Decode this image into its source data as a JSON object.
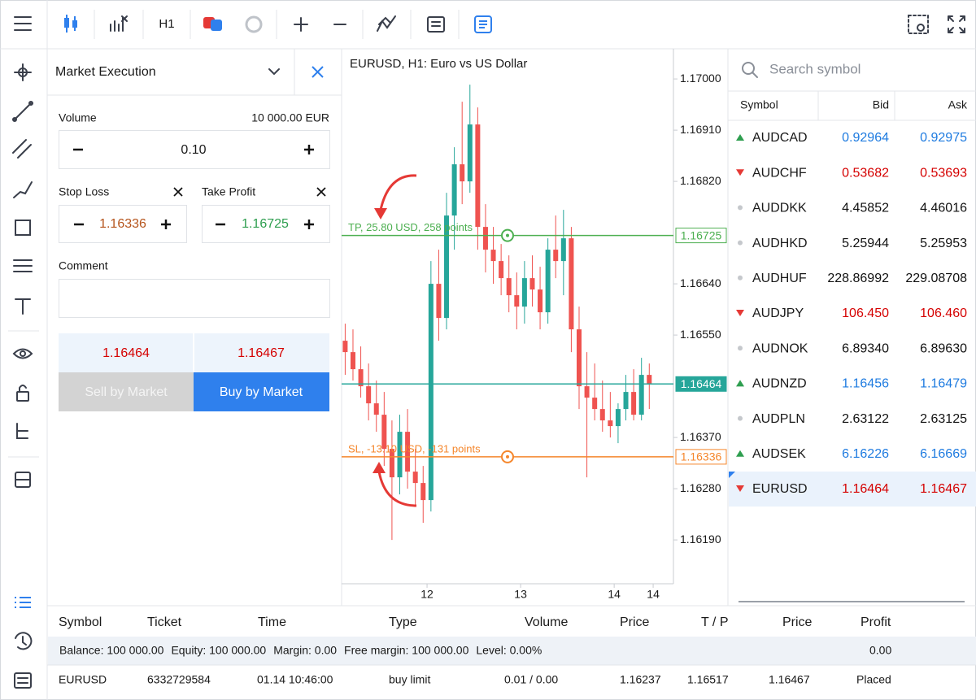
{
  "toolbar": {
    "timeframe": "H1"
  },
  "order_panel": {
    "title": "Market Execution",
    "volume_label": "Volume",
    "volume_value": "10 000.00 EUR",
    "volume": "0.10",
    "stop_loss_label": "Stop Loss",
    "stop_loss": "1.16336",
    "take_profit_label": "Take Profit",
    "take_profit": "1.16725",
    "comment_label": "Comment",
    "bid": "1.16464",
    "ask": "1.16467",
    "sell_button": "Sell by Market",
    "buy_button": "Buy by Market"
  },
  "chart": {
    "title": "EURUSD, H1: Euro vs US Dollar",
    "ylim": [
      1.16113,
      1.17053
    ],
    "yticks": [
      {
        "value": 1.17,
        "label": "1.17000"
      },
      {
        "value": 1.1691,
        "label": "1.16910"
      },
      {
        "value": 1.1682,
        "label": "1.16820"
      },
      {
        "value": 1.1664,
        "label": "1.16640"
      },
      {
        "value": 1.1655,
        "label": "1.16550"
      },
      {
        "value": 1.1637,
        "label": "1.16370"
      },
      {
        "value": 1.1628,
        "label": "1.16280"
      },
      {
        "value": 1.1619,
        "label": "1.16190"
      }
    ],
    "xlim": [
      2.5,
      87.2
    ],
    "xticks": [
      {
        "value": 24,
        "label": "12"
      },
      {
        "value": 48,
        "label": "13"
      },
      {
        "value": 72,
        "label": "14"
      },
      {
        "value": 82,
        "label": "14"
      }
    ],
    "up_color": "#26a69a",
    "down_color": "#ef5350",
    "candles": [
      [
        3,
        1.1654,
        1.1657,
        1.1648,
        1.1652
      ],
      [
        5,
        1.1652,
        1.1656,
        1.1647,
        1.1649
      ],
      [
        7,
        1.1649,
        1.1653,
        1.1644,
        1.1646
      ],
      [
        9,
        1.1646,
        1.165,
        1.164,
        1.1643
      ],
      [
        11,
        1.1643,
        1.1647,
        1.1638,
        1.1641
      ],
      [
        13,
        1.1641,
        1.1645,
        1.1632,
        1.1635
      ],
      [
        15,
        1.1635,
        1.164,
        1.1619,
        1.163
      ],
      [
        17,
        1.163,
        1.1641,
        1.1627,
        1.1638
      ],
      [
        19,
        1.1638,
        1.1642,
        1.1628,
        1.1631
      ],
      [
        21,
        1.1631,
        1.1635,
        1.1625,
        1.1629
      ],
      [
        23,
        1.1629,
        1.1632,
        1.1622,
        1.1626
      ],
      [
        25,
        1.1626,
        1.1668,
        1.1624,
        1.1664
      ],
      [
        27,
        1.1664,
        1.167,
        1.1654,
        1.1658
      ],
      [
        29,
        1.1658,
        1.168,
        1.1656,
        1.1676
      ],
      [
        31,
        1.1676,
        1.1688,
        1.167,
        1.1685
      ],
      [
        33,
        1.1685,
        1.1696,
        1.1678,
        1.1682
      ],
      [
        35,
        1.1682,
        1.1699,
        1.168,
        1.1692
      ],
      [
        37,
        1.1692,
        1.1695,
        1.167,
        1.1674
      ],
      [
        39,
        1.1674,
        1.1678,
        1.1666,
        1.167
      ],
      [
        41,
        1.167,
        1.1674,
        1.1664,
        1.1668
      ],
      [
        43,
        1.1668,
        1.1671,
        1.1662,
        1.1665
      ],
      [
        45,
        1.1665,
        1.1669,
        1.1659,
        1.1662
      ],
      [
        47,
        1.1662,
        1.1666,
        1.1656,
        1.166
      ],
      [
        49,
        1.166,
        1.1668,
        1.1657,
        1.1665
      ],
      [
        51,
        1.1665,
        1.1669,
        1.166,
        1.1663
      ],
      [
        53,
        1.1663,
        1.1667,
        1.1656,
        1.1659
      ],
      [
        55,
        1.1659,
        1.1672,
        1.1657,
        1.167
      ],
      [
        57,
        1.167,
        1.1676,
        1.1665,
        1.1668
      ],
      [
        59,
        1.1668,
        1.1677,
        1.1662,
        1.1672
      ],
      [
        61,
        1.1672,
        1.1674,
        1.1652,
        1.1656
      ],
      [
        63,
        1.1656,
        1.166,
        1.1642,
        1.1646
      ],
      [
        65,
        1.1646,
        1.1652,
        1.163,
        1.1644
      ],
      [
        67,
        1.1644,
        1.165,
        1.164,
        1.1642
      ],
      [
        69,
        1.1642,
        1.1647,
        1.1638,
        1.164
      ],
      [
        71,
        1.164,
        1.1645,
        1.1637,
        1.1639
      ],
      [
        73,
        1.1639,
        1.1643,
        1.1636,
        1.1642
      ],
      [
        75,
        1.1642,
        1.1648,
        1.164,
        1.1645
      ],
      [
        77,
        1.1645,
        1.1649,
        1.164,
        1.1641
      ],
      [
        79,
        1.1641,
        1.1651,
        1.164,
        1.1648
      ],
      [
        81,
        1.1648,
        1.165,
        1.1642,
        1.16464
      ]
    ],
    "current_price": {
      "value": 1.16464,
      "label": "1.16464",
      "color": "#26a69a"
    },
    "take_profit": {
      "value": 1.16725,
      "label": "1.16725",
      "text": "TP, 25.80 USD, 258 points",
      "color": "#4caf50"
    },
    "stop_loss": {
      "value": 1.16336,
      "label": "1.16336",
      "text": "SL, -13.10 USD, -131 points",
      "color": "#f5862b"
    }
  },
  "symbols": {
    "search_placeholder": "Search symbol",
    "columns": [
      "Symbol",
      "Bid",
      "Ask"
    ],
    "selected": "EURUSD",
    "rows": [
      {
        "symbol": "AUDCAD",
        "direction": "up",
        "bid": "0.92964",
        "ask": "0.92975"
      },
      {
        "symbol": "AUDCHF",
        "direction": "down",
        "bid": "0.53682",
        "ask": "0.53693"
      },
      {
        "symbol": "AUDDKK",
        "direction": "none",
        "bid": "4.45852",
        "ask": "4.46016"
      },
      {
        "symbol": "AUDHKD",
        "direction": "none",
        "bid": "5.25944",
        "ask": "5.25953"
      },
      {
        "symbol": "AUDHUF",
        "direction": "none",
        "bid": "228.86992",
        "ask": "229.08708"
      },
      {
        "symbol": "AUDJPY",
        "direction": "down",
        "bid": "106.450",
        "ask": "106.460"
      },
      {
        "symbol": "AUDNOK",
        "direction": "none",
        "bid": "6.89340",
        "ask": "6.89630"
      },
      {
        "symbol": "AUDNZD",
        "direction": "up",
        "bid": "1.16456",
        "ask": "1.16479"
      },
      {
        "symbol": "AUDPLN",
        "direction": "none",
        "bid": "2.63122",
        "ask": "2.63125"
      },
      {
        "symbol": "AUDSEK",
        "direction": "up",
        "bid": "6.16226",
        "ask": "6.16669"
      },
      {
        "symbol": "EURUSD",
        "direction": "down",
        "bid": "1.16464",
        "ask": "1.16467"
      }
    ]
  },
  "orders": {
    "columns": [
      "Symbol",
      "Ticket",
      "Time",
      "Type",
      "Volume",
      "Price",
      "T / P",
      "Price",
      "Profit"
    ],
    "summary": [
      "Balance: 100 000.00",
      "Equity: 100 000.00",
      "Margin: 0.00",
      "Free margin: 100 000.00",
      "Level: 0.00%"
    ],
    "summary_profit": "0.00",
    "rows": [
      [
        "EURUSD",
        "6332729584",
        "01.14 10:46:00",
        "buy limit",
        "0.01 / 0.00",
        "1.16237",
        "1.16517",
        "1.16467",
        "Placed"
      ]
    ]
  }
}
